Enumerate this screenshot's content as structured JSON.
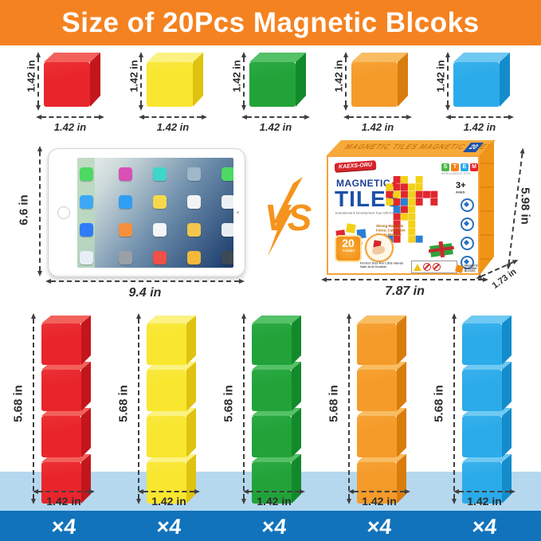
{
  "title": "Size of 20Pcs Magnetic Blcoks",
  "colors": {
    "header_bg": "#f58220",
    "accent_orange": "#f5941d",
    "band_light": "#b5d8ef",
    "band_dark": "#1173bb",
    "dim_text": "#2d2d2d"
  },
  "unit_row": {
    "side_label": "1.42 in",
    "bottom_label": "1.42 in",
    "cubes": [
      {
        "name": "red",
        "front": "#e9252c",
        "top": "#f2625b",
        "side": "#c3161c"
      },
      {
        "name": "yellow",
        "front": "#f9e62e",
        "top": "#fbf282",
        "side": "#e0c210"
      },
      {
        "name": "green",
        "front": "#22a33a",
        "top": "#55c168",
        "side": "#128a2b"
      },
      {
        "name": "orange",
        "front": "#f59b29",
        "top": "#f8bd63",
        "side": "#d97c0e"
      },
      {
        "name": "blue",
        "front": "#2babea",
        "top": "#6fc9f2",
        "side": "#148ccc"
      }
    ]
  },
  "comparison": {
    "tablet": {
      "height_label": "6.6 in",
      "width_label": "9.4 in",
      "dock_icon_colors": [
        "#4cd964",
        "#3da8f5",
        "#2f7cf6",
        "#e8eef5"
      ],
      "grid_icon_colors": [
        [
          "#d94fb5",
          "#3fd6c9",
          "#9fb7c9",
          "#4cd964"
        ],
        [
          "#2f9ff3",
          "#f7d84a",
          "#f2f3f5",
          "#eef1f4"
        ],
        [
          "#f6903d",
          "#f5f6f8",
          "#f3c64e",
          "#e9eef2"
        ],
        [
          "#9aa0a6",
          "#f05045",
          "#f2b93b",
          "#3c4a55"
        ]
      ]
    },
    "vs_label": "VS",
    "box": {
      "brand": "KAEXS-ORU",
      "flap_text": "MAGNETIC TILES      MAGNETIC TILES",
      "flap_badge": "20",
      "title_line1": "MAGNETIC",
      "title_line2": "TILES",
      "tagline": "Educational & Development Toys Gift For Kids",
      "stem_letters": [
        "S",
        "T",
        "E",
        "M"
      ],
      "stem_colors": [
        "#4db848",
        "#f5821f",
        "#2aabe9",
        "#e8232a"
      ],
      "stem_sub": "INTELLIGENCE TOYS",
      "age": "3+",
      "age_sub": "AGES",
      "feature_lines": [
        "Strong Magnetic",
        "Force, Can Better",
        "Create Multiple",
        "Shapes"
      ],
      "badge_count": "20",
      "badge_sub": "PCS/SET",
      "hand_caption_lines": [
        "Perfect Size For Little Hands",
        "Safe And Durable"
      ],
      "building_blocks_lines": [
        "MAGNETIC",
        "BUILDING",
        "BLOCKS"
      ],
      "width_label": "7.87 in",
      "height_label": "5.98 in",
      "depth_label": "1.73 in",
      "robot_pattern": [
        "..ry.y...",
        ".yrryy...",
        ".ryryrrr.",
        ".yrbyr.r.",
        "..bry....",
        "..ryy....",
        "..r.y....",
        "..r.y....",
        ".br.yb..."
      ],
      "robot_palette": {
        "r": "#e0272e",
        "y": "#f3d117",
        "b": "#2a7fd4",
        "g": "#2fa43c",
        "o": "#f59b29"
      }
    }
  },
  "stacks": {
    "height_label": "5.68 in",
    "width_label": "1.42 in",
    "multiplier": "×4",
    "cubes": [
      {
        "name": "red",
        "front": "#e9252c",
        "top": "#f2625b",
        "side": "#c3161c"
      },
      {
        "name": "yellow",
        "front": "#f9e62e",
        "top": "#fbf282",
        "side": "#e0c210"
      },
      {
        "name": "green",
        "front": "#22a33a",
        "top": "#55c168",
        "side": "#128a2b"
      },
      {
        "name": "orange",
        "front": "#f59b29",
        "top": "#f8bd63",
        "side": "#d97c0e"
      },
      {
        "name": "blue",
        "front": "#2babea",
        "top": "#6fc9f2",
        "side": "#148ccc"
      }
    ]
  }
}
